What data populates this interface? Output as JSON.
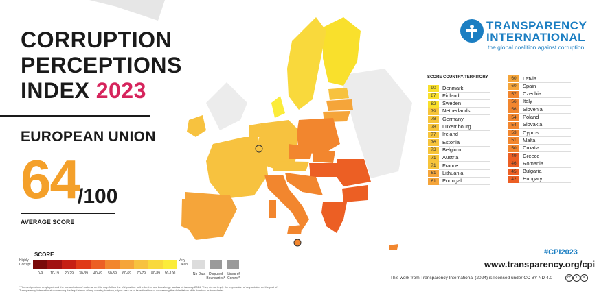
{
  "header": {
    "title_line1": "CORRUPTION",
    "title_line2": "PERCEPTIONS",
    "title_line3_prefix": "INDEX ",
    "title_year": "2023"
  },
  "region": "EUROPEAN UNION",
  "average": {
    "score": "64",
    "out_of": "/100",
    "label": "AVERAGE SCORE"
  },
  "legend": {
    "title": "SCORE",
    "low_label": "Highly Corrupt",
    "high_label": "Very Clean",
    "bins": [
      {
        "label": "0-9",
        "color": "#7a0a0a"
      },
      {
        "label": "10-19",
        "color": "#a11212"
      },
      {
        "label": "20-29",
        "color": "#c61f14"
      },
      {
        "label": "30-39",
        "color": "#e03a18"
      },
      {
        "label": "40-49",
        "color": "#ec5f24"
      },
      {
        "label": "50-59",
        "color": "#f2862e"
      },
      {
        "label": "60-69",
        "color": "#f5a53a"
      },
      {
        "label": "70-79",
        "color": "#f7c23f"
      },
      {
        "label": "80-89",
        "color": "#f9d93c"
      },
      {
        "label": "90-100",
        "color": "#fbec3a"
      }
    ],
    "no_data": "No Data",
    "disputed": "Disputed Boundaries*",
    "lines_control": "Lines of Control*"
  },
  "footnote": "*The designations employed and the presentation of material on this map follow the UN practice to the best of our knowledge and as of January 2024. They do not imply the expression of any opinion on the part of Transparency International concerning the legal status of any country, territory, city or area or of its authorities or concerning the delimitation of its frontiers or boundaries.",
  "logo": {
    "line1": "TRANSPARENCY",
    "line2": "INTERNATIONAL",
    "tagline": "the global coalition against corruption"
  },
  "table": {
    "score_header": "SCORE",
    "country_header": "COUNTRY/TERRITORY",
    "left": [
      {
        "score": "90",
        "country": "Denmark",
        "color": "#f9e02c"
      },
      {
        "score": "87",
        "country": "Finland",
        "color": "#f9e02c"
      },
      {
        "score": "82",
        "country": "Sweden",
        "color": "#f9e02c"
      },
      {
        "score": "79",
        "country": "Netherlands",
        "color": "#f7c43a"
      },
      {
        "score": "78",
        "country": "Germany",
        "color": "#f7c43a"
      },
      {
        "score": "78",
        "country": "Luxembourg",
        "color": "#f7c43a"
      },
      {
        "score": "77",
        "country": "Ireland",
        "color": "#f7c43a"
      },
      {
        "score": "76",
        "country": "Estonia",
        "color": "#f7c43a"
      },
      {
        "score": "73",
        "country": "Belgium",
        "color": "#f7c43a"
      },
      {
        "score": "71",
        "country": "Austria",
        "color": "#f7c43a"
      },
      {
        "score": "71",
        "country": "France",
        "color": "#f7c43a"
      },
      {
        "score": "61",
        "country": "Lithuania",
        "color": "#f5a53a"
      },
      {
        "score": "61",
        "country": "Portugal",
        "color": "#f5a53a"
      }
    ],
    "right": [
      {
        "score": "60",
        "country": "Latvia",
        "color": "#f5a53a"
      },
      {
        "score": "60",
        "country": "Spain",
        "color": "#f5a53a"
      },
      {
        "score": "57",
        "country": "Czechia",
        "color": "#f2862e"
      },
      {
        "score": "56",
        "country": "Italy",
        "color": "#f2862e"
      },
      {
        "score": "56",
        "country": "Slovenia",
        "color": "#f2862e"
      },
      {
        "score": "54",
        "country": "Poland",
        "color": "#f2862e"
      },
      {
        "score": "54",
        "country": "Slovakia",
        "color": "#f2862e"
      },
      {
        "score": "53",
        "country": "Cyprus",
        "color": "#f2862e"
      },
      {
        "score": "51",
        "country": "Malta",
        "color": "#f2862e"
      },
      {
        "score": "50",
        "country": "Croatia",
        "color": "#f2862e"
      },
      {
        "score": "49",
        "country": "Greece",
        "color": "#ec5f24"
      },
      {
        "score": "46",
        "country": "Romania",
        "color": "#ec5f24"
      },
      {
        "score": "45",
        "country": "Bulgaria",
        "color": "#ec5f24"
      },
      {
        "score": "42",
        "country": "Hungary",
        "color": "#ec5f24"
      }
    ]
  },
  "hashtag": "#CPI2023",
  "url": "www.transparency.org/cpi",
  "license": "This work from Transparency International (2024) is licensed under CC BY-ND 4.0",
  "colors": {
    "accent_pink": "#d6245c",
    "accent_orange": "#f4a02a",
    "brand_blue": "#1b7ec2"
  }
}
